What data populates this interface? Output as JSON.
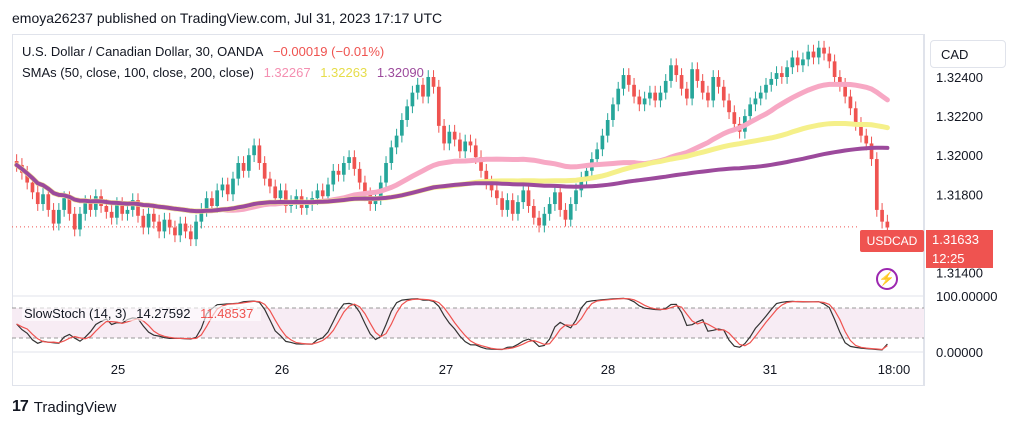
{
  "header": {
    "published": "emoya26237 published on TradingView.com, Jul 31, 2023 17:17 UTC"
  },
  "currency": "CAD",
  "legend": {
    "symbol": "U.S. Dollar / Canadian Dollar, 30, OANDA",
    "change": "−0.00019 (−0.01%)",
    "sma_label": "SMAs (50, close, 100, close, 200, close)",
    "sma50": "1.32267",
    "sma100": "1.32263",
    "sma200": "1.32090",
    "stoch_label": "SlowStoch (14, 3)",
    "stoch_k": "14.27592",
    "stoch_d": "11.48537"
  },
  "price_badge": {
    "symbol": "USDCAD",
    "price": "1.31633",
    "countdown": "12:25"
  },
  "footer": {
    "brand": "TradingView"
  },
  "colors": {
    "up": "#26a69a",
    "down": "#ef5350",
    "sma50": "#f7a8c4",
    "sma100": "#f5f08a",
    "sma200": "#9c4a9c",
    "stoch_k": "#333333",
    "stoch_d": "#ef5350"
  },
  "chart_data": [
    {
      "type": "candlestick",
      "ylim": [
        1.313,
        1.3262
      ],
      "y_ticks": [
        "1.32400",
        "1.32200",
        "1.32000",
        "1.31800",
        "1.31400"
      ],
      "y_tick_values": [
        1.324,
        1.322,
        1.32,
        1.318,
        1.314
      ],
      "x_ticks": [
        "25",
        "26",
        "27",
        "28",
        "31",
        "18:00"
      ],
      "last_price": 1.31633,
      "close": [
        1.3195,
        1.3191,
        1.3186,
        1.3181,
        1.3175,
        1.318,
        1.3172,
        1.3165,
        1.3172,
        1.3178,
        1.317,
        1.3162,
        1.317,
        1.3176,
        1.3172,
        1.3179,
        1.3174,
        1.3171,
        1.3168,
        1.3175,
        1.317,
        1.3172,
        1.3177,
        1.3169,
        1.3163,
        1.317,
        1.3166,
        1.3161,
        1.3167,
        1.3163,
        1.3159,
        1.3165,
        1.3161,
        1.3157,
        1.3166,
        1.3172,
        1.3178,
        1.3174,
        1.3182,
        1.3185,
        1.318,
        1.3188,
        1.3196,
        1.3192,
        1.32,
        1.3205,
        1.3196,
        1.3188,
        1.3184,
        1.3178,
        1.3182,
        1.3174,
        1.3176,
        1.3179,
        1.3173,
        1.3175,
        1.3178,
        1.3182,
        1.3179,
        1.3185,
        1.3192,
        1.319,
        1.3196,
        1.3199,
        1.3193,
        1.3186,
        1.318,
        1.3175,
        1.3178,
        1.3186,
        1.3196,
        1.3204,
        1.321,
        1.3218,
        1.3225,
        1.3232,
        1.3236,
        1.323,
        1.324,
        1.3235,
        1.3215,
        1.3206,
        1.3212,
        1.3208,
        1.3202,
        1.3207,
        1.3205,
        1.3199,
        1.3192,
        1.3186,
        1.3182,
        1.3178,
        1.3172,
        1.3177,
        1.317,
        1.3176,
        1.3182,
        1.3174,
        1.3168,
        1.3164,
        1.317,
        1.3175,
        1.3181,
        1.3172,
        1.3167,
        1.3175,
        1.3182,
        1.3188,
        1.3192,
        1.3198,
        1.3203,
        1.321,
        1.3218,
        1.3226,
        1.3234,
        1.3241,
        1.3236,
        1.323,
        1.3226,
        1.3229,
        1.3232,
        1.3228,
        1.3232,
        1.3238,
        1.3246,
        1.3241,
        1.3234,
        1.3229,
        1.3244,
        1.3238,
        1.3232,
        1.3228,
        1.324,
        1.3235,
        1.3228,
        1.3222,
        1.3216,
        1.3212,
        1.322,
        1.3226,
        1.3229,
        1.3232,
        1.3236,
        1.3239,
        1.3242,
        1.324,
        1.3245,
        1.325,
        1.3246,
        1.3249,
        1.3253,
        1.325,
        1.3255,
        1.3252,
        1.3248,
        1.324,
        1.3236,
        1.323,
        1.3224,
        1.3216,
        1.321,
        1.3206,
        1.3198,
        1.3172,
        1.3166,
        1.3163
      ]
    },
    {
      "type": "line",
      "ylim": [
        0,
        100
      ],
      "y_ticks": [
        "100.00000",
        "0.00000"
      ],
      "y_tick_values": [
        100,
        0
      ],
      "series": [
        {
          "name": "SlowStoch (14, 3)",
          "values": [
            14.27592
          ]
        },
        {
          "name": "",
          "values": [
            11.48537
          ]
        }
      ]
    }
  ]
}
